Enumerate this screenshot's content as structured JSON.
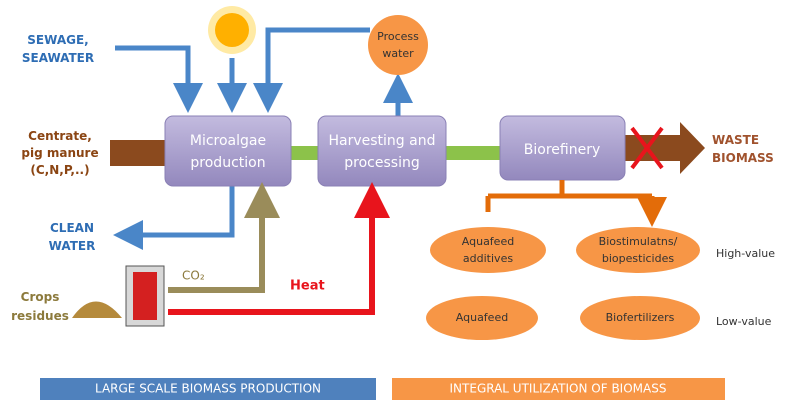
{
  "nodes": [
    {
      "label": [
        "Microalgae",
        "production"
      ]
    },
    {
      "label": [
        "Harvesting and",
        "processing"
      ]
    },
    {
      "label": [
        "Biorefinery"
      ]
    },
    {
      "label": [
        "Process",
        "water"
      ]
    }
  ],
  "inputs": [
    {
      "label": [
        "SEWAGE,",
        "SEAWATER"
      ]
    },
    {
      "label": [
        "Centrate,",
        "pig manure",
        "(C,N,P,..)"
      ]
    },
    {
      "label": [
        "CLEAN",
        "WATER"
      ]
    },
    {
      "label": [
        "Crops",
        "residues"
      ]
    }
  ],
  "flows": {
    "co2": "CO₂",
    "heat": "Heat"
  },
  "waste": [
    "WASTE",
    "BIOMASS"
  ],
  "products": [
    {
      "label": [
        "Aquafeed",
        "additives"
      ]
    },
    {
      "label": [
        "Biostimulatns/",
        "biopesticides"
      ]
    },
    {
      "label": [
        "Aquafeed"
      ]
    },
    {
      "label": [
        "Biofertilizers"
      ]
    }
  ],
  "value_levels": [
    "High-value",
    "Low-value"
  ],
  "footer": [
    "LARGE SCALE BIOMASS PRODUCTION",
    "INTEGRAL UTILIZATION OF BIOMASS"
  ]
}
